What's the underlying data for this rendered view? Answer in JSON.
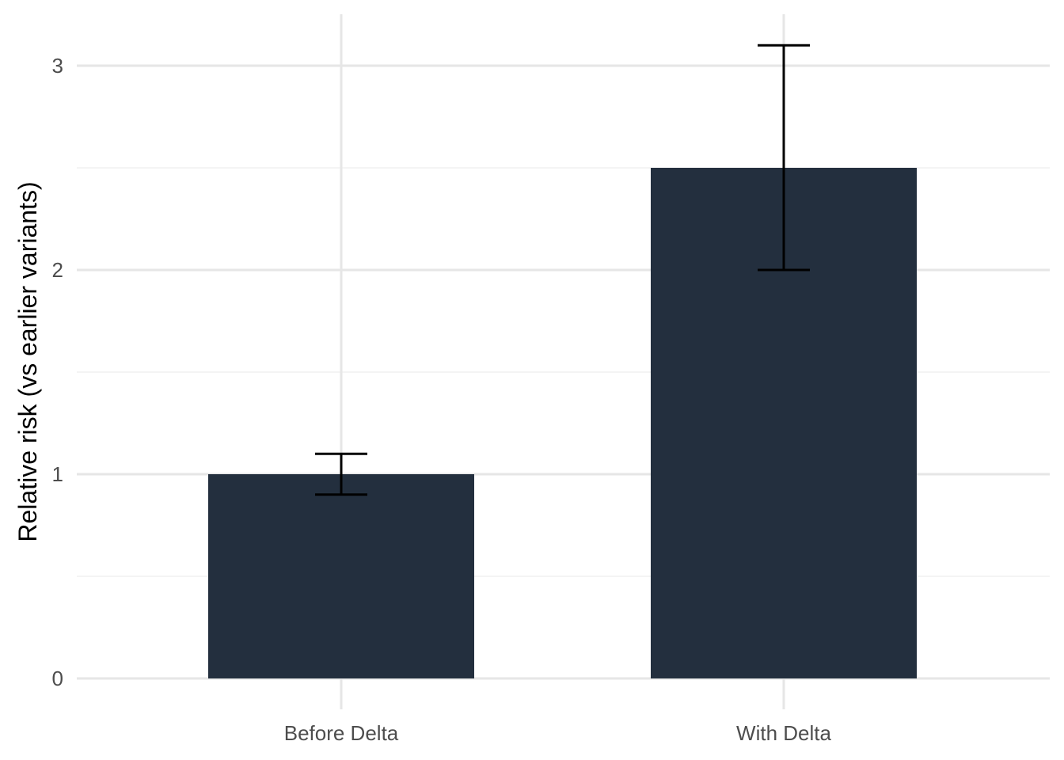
{
  "chart_data": {
    "type": "bar",
    "title": "",
    "xlabel": "",
    "ylabel": "Relative risk (vs earlier variants)",
    "categories": [
      "Before Delta",
      "With Delta"
    ],
    "values": [
      1.0,
      2.5
    ],
    "error_bars": {
      "lower": [
        0.9,
        2.0
      ],
      "upper": [
        1.1,
        3.1
      ]
    },
    "ylim": [
      0,
      3.25
    ],
    "y_ticks": [
      0,
      1,
      2,
      3
    ],
    "y_tick_labels": [
      "0",
      "1",
      "2",
      "3"
    ],
    "y_minor_ticks": [
      0.5,
      1.5,
      2.5
    ],
    "grid": true,
    "legend": "none",
    "colors": {
      "bar": "#232f3e",
      "error_bar": "#000000",
      "grid_major": "#e6e6e6",
      "grid_minor": "#f0f0f0",
      "tick_label": "#4d4d4d",
      "axis_title": "#000000",
      "background": "#ffffff"
    }
  }
}
